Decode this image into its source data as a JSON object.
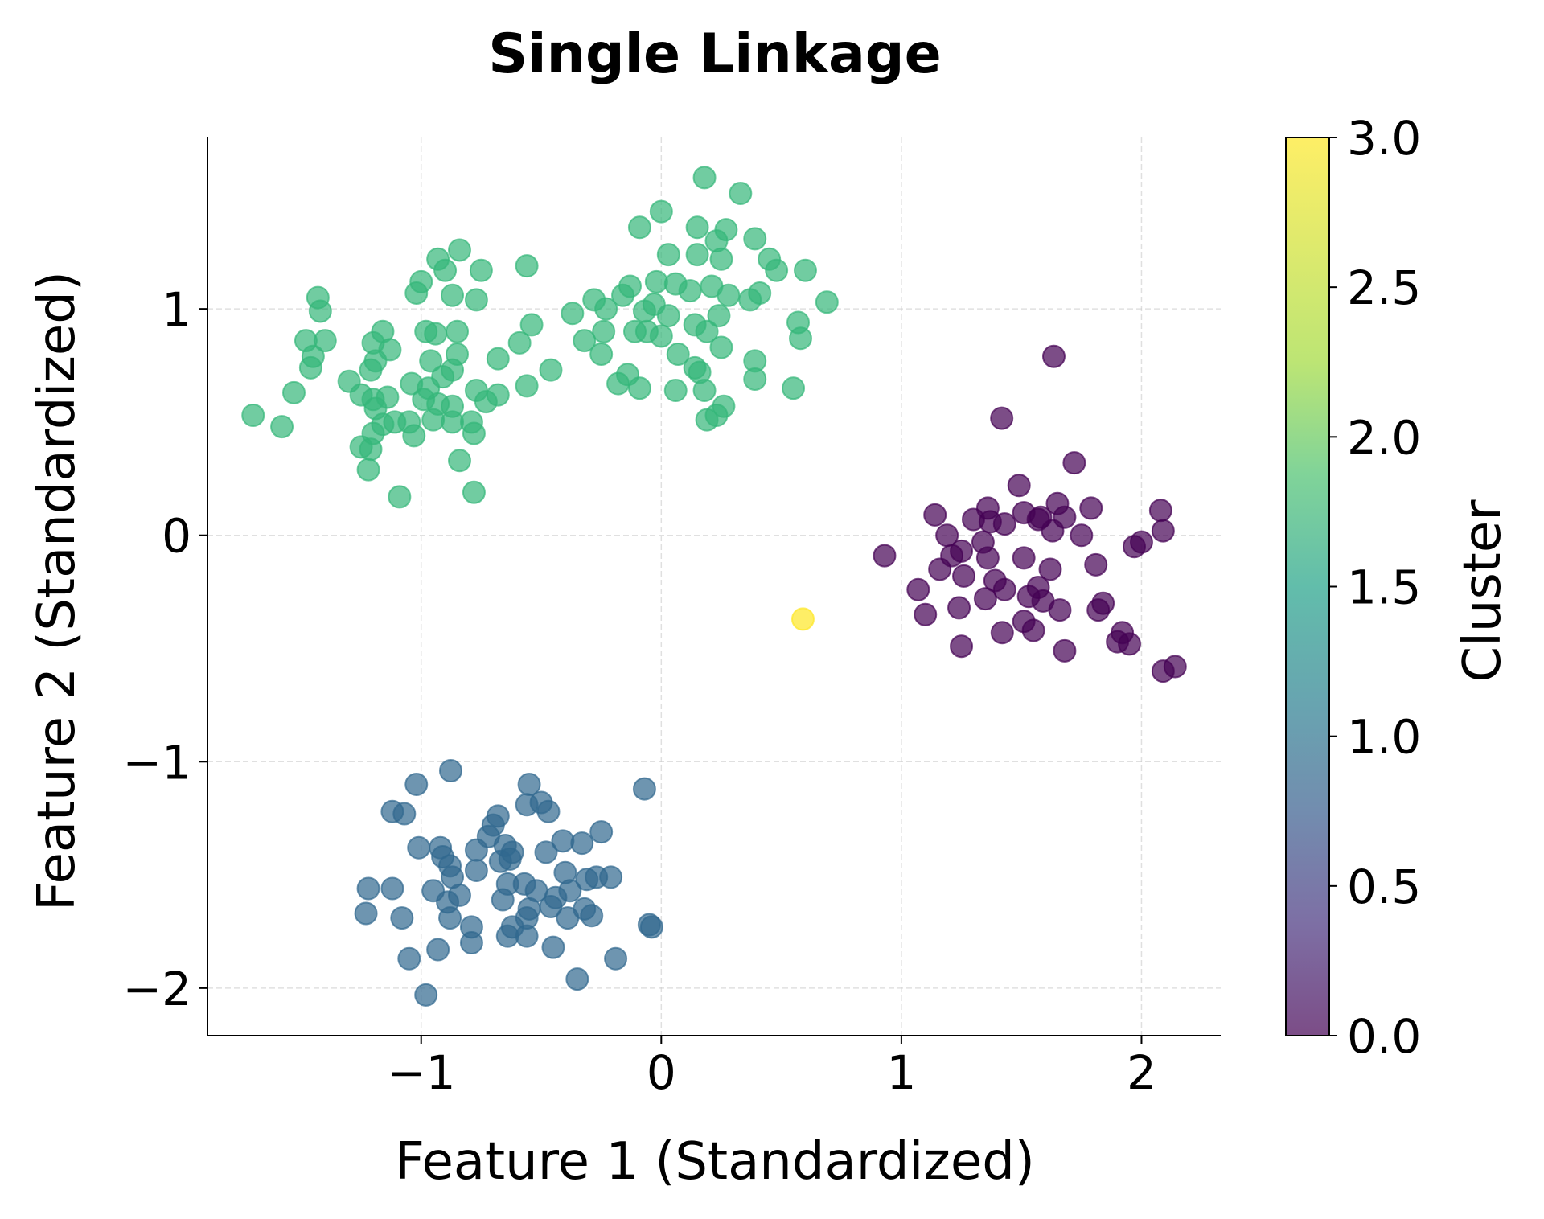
{
  "chart_data": {
    "type": "scatter",
    "title": "Single Linkage",
    "xlabel": "Feature 1 (Standardized)",
    "ylabel": "Feature 2 (Standardized)",
    "xlim": [
      -1.89,
      2.33
    ],
    "ylim": [
      -2.21,
      1.757
    ],
    "xticks": [
      -1,
      0,
      1,
      2
    ],
    "xtick_labels": [
      "−1",
      "0",
      "1",
      "2"
    ],
    "yticks": [
      -2,
      -1,
      0,
      1
    ],
    "ytick_labels": [
      "−2",
      "−1",
      "0",
      "1"
    ],
    "grid": true,
    "colormap": "viridis",
    "colorbar": {
      "label": "Cluster",
      "range": [
        0,
        3
      ],
      "ticks": [
        0,
        0.5,
        1,
        1.5,
        2,
        2.5,
        3
      ],
      "tick_labels": [
        "0.0",
        "0.5",
        "1.0",
        "1.5",
        "2.0",
        "2.5",
        "3.0"
      ]
    },
    "cluster_colors": {
      "0": "#440154",
      "1": "#31688e",
      "2": "#35b779",
      "3": "#fde725"
    },
    "point_alpha": 0.7,
    "points_format": [
      "x",
      "y",
      "cluster"
    ],
    "points": [
      [
        1.635,
        0.79,
        0
      ],
      [
        1.418,
        0.517,
        0
      ],
      [
        1.72,
        0.32,
        0
      ],
      [
        1.49,
        0.22,
        0
      ],
      [
        1.65,
        0.14,
        0
      ],
      [
        1.79,
        0.12,
        0
      ],
      [
        2.08,
        0.11,
        0
      ],
      [
        1.14,
        0.09,
        0
      ],
      [
        1.36,
        0.12,
        0
      ],
      [
        0.93,
        -0.09,
        0
      ],
      [
        1.19,
        0.0,
        0
      ],
      [
        1.3,
        0.07,
        0
      ],
      [
        1.43,
        0.05,
        0
      ],
      [
        1.57,
        0.07,
        0
      ],
      [
        1.63,
        0.02,
        0
      ],
      [
        1.75,
        0.0,
        0
      ],
      [
        2.09,
        0.02,
        0
      ],
      [
        2.0,
        -0.03,
        0
      ],
      [
        1.97,
        -0.05,
        0
      ],
      [
        1.81,
        -0.13,
        0
      ],
      [
        1.62,
        -0.15,
        0
      ],
      [
        1.51,
        -0.1,
        0
      ],
      [
        1.36,
        -0.1,
        0
      ],
      [
        1.25,
        -0.07,
        0
      ],
      [
        1.26,
        -0.18,
        0
      ],
      [
        1.16,
        -0.15,
        0
      ],
      [
        1.07,
        -0.24,
        0
      ],
      [
        1.1,
        -0.35,
        0
      ],
      [
        1.24,
        -0.32,
        0
      ],
      [
        1.35,
        -0.28,
        0
      ],
      [
        1.43,
        -0.24,
        0
      ],
      [
        1.53,
        -0.27,
        0
      ],
      [
        1.59,
        -0.29,
        0
      ],
      [
        1.66,
        -0.33,
        0
      ],
      [
        1.82,
        -0.33,
        0
      ],
      [
        1.84,
        -0.3,
        0
      ],
      [
        1.51,
        -0.38,
        0
      ],
      [
        1.55,
        -0.42,
        0
      ],
      [
        1.42,
        -0.43,
        0
      ],
      [
        1.92,
        -0.43,
        0
      ],
      [
        1.9,
        -0.47,
        0
      ],
      [
        1.95,
        -0.48,
        0
      ],
      [
        1.25,
        -0.49,
        0
      ],
      [
        1.68,
        -0.51,
        0
      ],
      [
        2.09,
        -0.6,
        0
      ],
      [
        2.14,
        -0.58,
        0
      ],
      [
        1.37,
        0.06,
        0
      ],
      [
        1.58,
        0.08,
        0
      ],
      [
        1.68,
        0.08,
        0
      ],
      [
        1.51,
        0.1,
        0
      ],
      [
        1.34,
        -0.03,
        0
      ],
      [
        1.21,
        -0.09,
        0
      ],
      [
        1.39,
        -0.2,
        0
      ],
      [
        1.57,
        -0.23,
        0
      ],
      [
        0.59,
        -0.37,
        3
      ],
      [
        -0.877,
        -1.04,
        1
      ],
      [
        -1.02,
        -1.1,
        1
      ],
      [
        -0.07,
        -1.12,
        1
      ],
      [
        -0.55,
        -1.1,
        1
      ],
      [
        -1.12,
        -1.22,
        1
      ],
      [
        -1.07,
        -1.23,
        1
      ],
      [
        -0.5,
        -1.18,
        1
      ],
      [
        -0.47,
        -1.22,
        1
      ],
      [
        -0.56,
        -1.19,
        1
      ],
      [
        -0.68,
        -1.24,
        1
      ],
      [
        -0.7,
        -1.28,
        1
      ],
      [
        -0.72,
        -1.33,
        1
      ],
      [
        -0.25,
        -1.31,
        1
      ],
      [
        -0.41,
        -1.35,
        1
      ],
      [
        -0.33,
        -1.36,
        1
      ],
      [
        -1.01,
        -1.38,
        1
      ],
      [
        -0.92,
        -1.38,
        1
      ],
      [
        -0.65,
        -1.37,
        1
      ],
      [
        -0.62,
        -1.4,
        1
      ],
      [
        -0.77,
        -1.39,
        1
      ],
      [
        -0.48,
        -1.4,
        1
      ],
      [
        -0.91,
        -1.42,
        1
      ],
      [
        -0.88,
        -1.46,
        1
      ],
      [
        -0.67,
        -1.44,
        1
      ],
      [
        -0.63,
        -1.43,
        1
      ],
      [
        -0.77,
        -1.48,
        1
      ],
      [
        -0.4,
        -1.49,
        1
      ],
      [
        -0.87,
        -1.51,
        1
      ],
      [
        -0.57,
        -1.54,
        1
      ],
      [
        -1.22,
        -1.56,
        1
      ],
      [
        -1.12,
        -1.56,
        1
      ],
      [
        -0.95,
        -1.57,
        1
      ],
      [
        -0.64,
        -1.54,
        1
      ],
      [
        -0.52,
        -1.57,
        1
      ],
      [
        -0.31,
        -1.52,
        1
      ],
      [
        -0.21,
        -1.51,
        1
      ],
      [
        -0.27,
        -1.51,
        1
      ],
      [
        -0.38,
        -1.57,
        1
      ],
      [
        -0.84,
        -1.59,
        1
      ],
      [
        -0.44,
        -1.6,
        1
      ],
      [
        -0.66,
        -1.61,
        1
      ],
      [
        -0.46,
        -1.64,
        1
      ],
      [
        -0.89,
        -1.62,
        1
      ],
      [
        -0.55,
        -1.65,
        1
      ],
      [
        -1.23,
        -1.67,
        1
      ],
      [
        -0.32,
        -1.65,
        1
      ],
      [
        -0.29,
        -1.68,
        1
      ],
      [
        -1.08,
        -1.69,
        1
      ],
      [
        -0.88,
        -1.69,
        1
      ],
      [
        -0.56,
        -1.69,
        1
      ],
      [
        -0.39,
        -1.69,
        1
      ],
      [
        -0.62,
        -1.73,
        1
      ],
      [
        -0.79,
        -1.73,
        1
      ],
      [
        -0.05,
        -1.72,
        1
      ],
      [
        -0.04,
        -1.73,
        1
      ],
      [
        -0.64,
        -1.77,
        1
      ],
      [
        -0.56,
        -1.77,
        1
      ],
      [
        -0.79,
        -1.8,
        1
      ],
      [
        -0.45,
        -1.82,
        1
      ],
      [
        -0.93,
        -1.83,
        1
      ],
      [
        -1.05,
        -1.87,
        1
      ],
      [
        -0.19,
        -1.87,
        1
      ],
      [
        -0.35,
        -1.96,
        1
      ],
      [
        -0.98,
        -2.03,
        1
      ],
      [
        0.18,
        1.58,
        2
      ],
      [
        0.33,
        1.51,
        2
      ],
      [
        0.0,
        1.43,
        2
      ],
      [
        -0.09,
        1.36,
        2
      ],
      [
        0.15,
        1.36,
        2
      ],
      [
        0.27,
        1.35,
        2
      ],
      [
        0.03,
        1.24,
        2
      ],
      [
        0.23,
        1.3,
        2
      ],
      [
        0.39,
        1.31,
        2
      ],
      [
        0.15,
        1.24,
        2
      ],
      [
        0.25,
        1.22,
        2
      ],
      [
        0.45,
        1.22,
        2
      ],
      [
        -0.56,
        1.19,
        2
      ],
      [
        0.48,
        1.17,
        2
      ],
      [
        0.6,
        1.17,
        2
      ],
      [
        -0.93,
        1.22,
        2
      ],
      [
        -0.84,
        1.26,
        2
      ],
      [
        -0.9,
        1.17,
        2
      ],
      [
        -0.75,
        1.17,
        2
      ],
      [
        -1.0,
        1.12,
        2
      ],
      [
        -1.02,
        1.07,
        2
      ],
      [
        -0.87,
        1.06,
        2
      ],
      [
        -0.77,
        1.04,
        2
      ],
      [
        -1.43,
        1.05,
        2
      ],
      [
        -1.42,
        0.99,
        2
      ],
      [
        -0.02,
        1.12,
        2
      ],
      [
        0.06,
        1.11,
        2
      ],
      [
        0.12,
        1.08,
        2
      ],
      [
        0.21,
        1.1,
        2
      ],
      [
        0.28,
        1.06,
        2
      ],
      [
        0.41,
        1.07,
        2
      ],
      [
        0.69,
        1.03,
        2
      ],
      [
        -0.28,
        1.04,
        2
      ],
      [
        -0.23,
        1.0,
        2
      ],
      [
        -0.16,
        1.06,
        2
      ],
      [
        -0.13,
        1.1,
        2
      ],
      [
        -0.07,
        0.99,
        2
      ],
      [
        -0.03,
        1.02,
        2
      ],
      [
        -0.37,
        0.98,
        2
      ],
      [
        0.03,
        0.97,
        2
      ],
      [
        0.14,
        0.93,
        2
      ],
      [
        0.24,
        0.97,
        2
      ],
      [
        0.37,
        1.04,
        2
      ],
      [
        0.57,
        0.94,
        2
      ],
      [
        0.58,
        0.87,
        2
      ],
      [
        -0.54,
        0.93,
        2
      ],
      [
        -0.59,
        0.85,
        2
      ],
      [
        -0.32,
        0.86,
        2
      ],
      [
        -0.24,
        0.9,
        2
      ],
      [
        -0.11,
        0.9,
        2
      ],
      [
        -0.06,
        0.9,
        2
      ],
      [
        0.0,
        0.88,
        2
      ],
      [
        0.19,
        0.9,
        2
      ],
      [
        0.25,
        0.83,
        2
      ],
      [
        0.07,
        0.8,
        2
      ],
      [
        -0.25,
        0.8,
        2
      ],
      [
        0.39,
        0.77,
        2
      ],
      [
        0.16,
        0.72,
        2
      ],
      [
        0.14,
        0.74,
        2
      ],
      [
        0.39,
        0.69,
        2
      ],
      [
        -0.14,
        0.71,
        2
      ],
      [
        -0.18,
        0.67,
        2
      ],
      [
        -0.09,
        0.65,
        2
      ],
      [
        0.06,
        0.64,
        2
      ],
      [
        0.55,
        0.65,
        2
      ],
      [
        0.18,
        0.64,
        2
      ],
      [
        0.26,
        0.57,
        2
      ],
      [
        0.23,
        0.53,
        2
      ],
      [
        0.19,
        0.51,
        2
      ],
      [
        -0.46,
        0.73,
        2
      ],
      [
        -0.68,
        0.78,
        2
      ],
      [
        -0.56,
        0.66,
        2
      ],
      [
        -0.68,
        0.62,
        2
      ],
      [
        -0.77,
        0.64,
        2
      ],
      [
        -0.73,
        0.59,
        2
      ],
      [
        -0.87,
        0.57,
        2
      ],
      [
        -0.97,
        0.65,
        2
      ],
      [
        -1.04,
        0.67,
        2
      ],
      [
        -0.91,
        0.7,
        2
      ],
      [
        -0.85,
        0.8,
        2
      ],
      [
        -0.85,
        0.9,
        2
      ],
      [
        -0.98,
        0.9,
        2
      ],
      [
        -0.94,
        0.89,
        2
      ],
      [
        -0.96,
        0.77,
        2
      ],
      [
        -0.87,
        0.73,
        2
      ],
      [
        -1.48,
        0.86,
        2
      ],
      [
        -1.4,
        0.86,
        2
      ],
      [
        -1.46,
        0.74,
        2
      ],
      [
        -1.45,
        0.79,
        2
      ],
      [
        -1.16,
        0.9,
        2
      ],
      [
        -1.2,
        0.85,
        2
      ],
      [
        -1.13,
        0.82,
        2
      ],
      [
        -1.19,
        0.77,
        2
      ],
      [
        -1.21,
        0.73,
        2
      ],
      [
        -1.3,
        0.68,
        2
      ],
      [
        -1.53,
        0.63,
        2
      ],
      [
        -1.25,
        0.62,
        2
      ],
      [
        -1.2,
        0.6,
        2
      ],
      [
        -1.14,
        0.61,
        2
      ],
      [
        -1.19,
        0.56,
        2
      ],
      [
        -1.16,
        0.49,
        2
      ],
      [
        -1.2,
        0.45,
        2
      ],
      [
        -1.11,
        0.5,
        2
      ],
      [
        -1.05,
        0.5,
        2
      ],
      [
        -1.03,
        0.44,
        2
      ],
      [
        -0.95,
        0.51,
        2
      ],
      [
        -0.87,
        0.5,
        2
      ],
      [
        -0.79,
        0.5,
        2
      ],
      [
        -0.78,
        0.45,
        2
      ],
      [
        -1.7,
        0.53,
        2
      ],
      [
        -1.58,
        0.48,
        2
      ],
      [
        -1.25,
        0.39,
        2
      ],
      [
        -1.21,
        0.38,
        2
      ],
      [
        -1.22,
        0.29,
        2
      ],
      [
        -0.84,
        0.33,
        2
      ],
      [
        -0.78,
        0.19,
        2
      ],
      [
        -1.09,
        0.17,
        2
      ],
      [
        -0.99,
        0.6,
        2
      ],
      [
        -0.93,
        0.58,
        2
      ]
    ]
  }
}
